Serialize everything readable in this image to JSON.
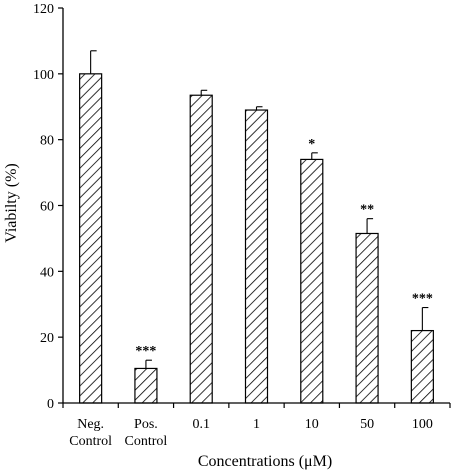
{
  "chart_data": {
    "type": "bar",
    "categories": [
      [
        "Neg.",
        "Control"
      ],
      [
        "Pos.",
        "Control"
      ],
      [
        "0.1"
      ],
      [
        "1"
      ],
      [
        "10"
      ],
      [
        "50"
      ],
      [
        "100"
      ]
    ],
    "values": [
      100,
      10.5,
      93.5,
      89,
      74,
      51.5,
      22
    ],
    "errors": [
      7,
      2.5,
      1.5,
      1,
      2,
      4.5,
      7
    ],
    "significance": [
      "",
      "***",
      "",
      "",
      "*",
      "**",
      "***"
    ],
    "xlabel": "Concentrations  (μM)",
    "ylabel": "Viabilty  (%)",
    "ylim": [
      0,
      120
    ],
    "yticks": [
      0,
      20,
      40,
      60,
      80,
      100,
      120
    ],
    "grid": false,
    "bar_fill": "diagonal-hatch"
  }
}
